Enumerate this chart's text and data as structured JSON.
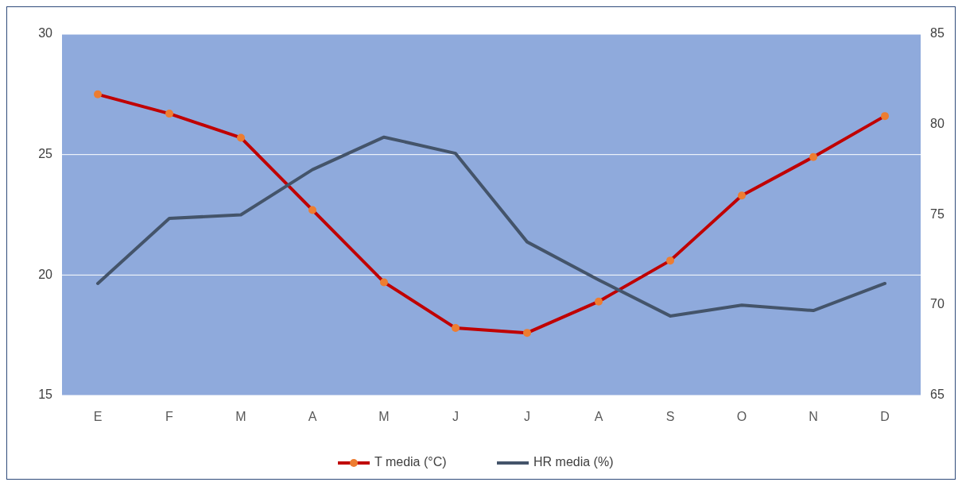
{
  "chart_data": {
    "type": "line",
    "categories": [
      "E",
      "F",
      "M",
      "A",
      "M",
      "J",
      "J",
      "A",
      "S",
      "O",
      "N",
      "D"
    ],
    "series": [
      {
        "name": "T media (°C)",
        "color": "#c00000",
        "colors": [
          "#ed7d31",
          "#ed7d31",
          "#ed7d31",
          "#ed7d31",
          "#ed7d31",
          "#ed7d31",
          "#ed7d31",
          "#ed7d31",
          "#ed7d31",
          "#ed7d31",
          "#ed7d31",
          "#ed7d31"
        ],
        "marker": "circle",
        "values": [
          27.5,
          26.7,
          25.7,
          22.7,
          19.7,
          17.8,
          17.6,
          18.9,
          20.6,
          23.3,
          24.9,
          26.6
        ]
      },
      {
        "name": "HR media (%)",
        "color": "#44546a",
        "axis": "y2",
        "marker": "none",
        "values": [
          71.2,
          74.8,
          75.0,
          77.5,
          79.3,
          78.4,
          73.5,
          71.4,
          69.4,
          70.0,
          69.7,
          71.2
        ]
      }
    ],
    "ylim": [
      15,
      30
    ],
    "yticks": [
      15,
      20,
      25,
      30
    ],
    "y2lim": [
      65,
      85
    ],
    "y2ticks": [
      65,
      70,
      75,
      80,
      85
    ],
    "grid": "y",
    "legend": "bottom"
  }
}
